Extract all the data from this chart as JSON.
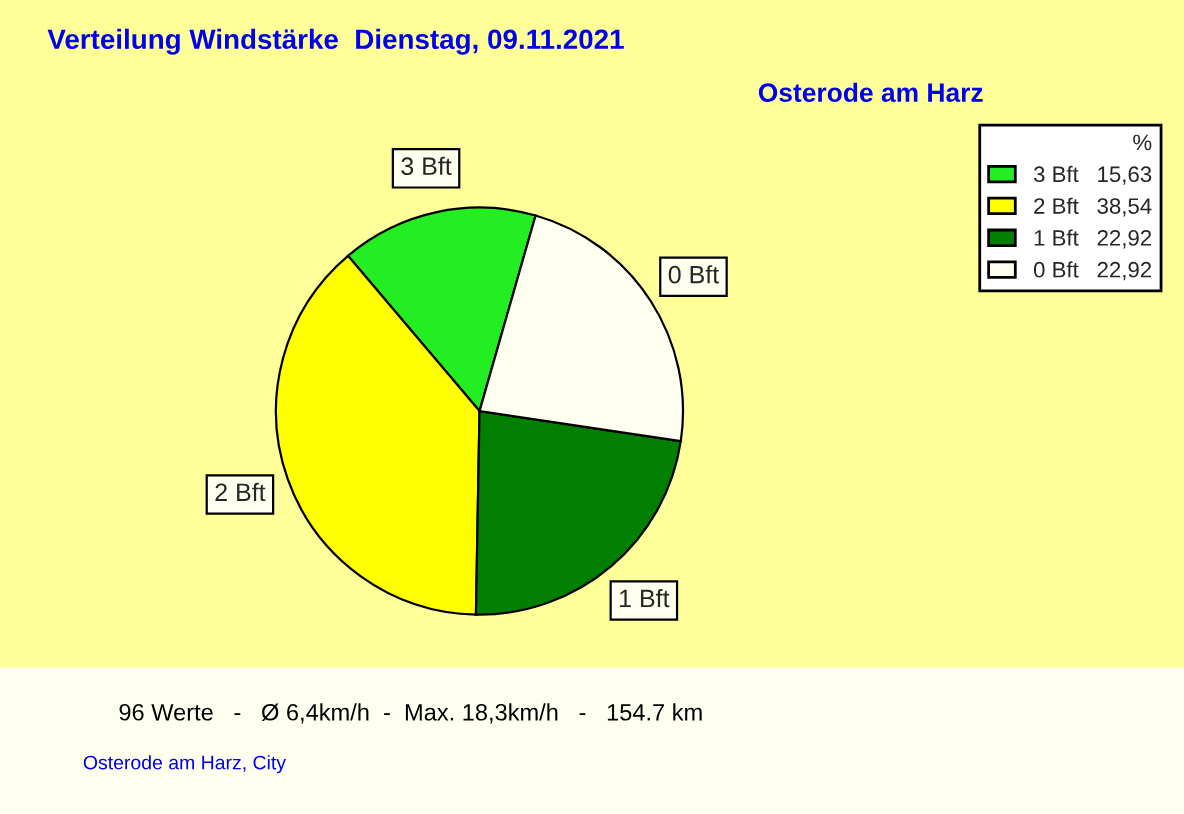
{
  "chart_data": {
    "type": "pie",
    "title": "Verteilung Windstärke  Dienstag, 09.11.2021",
    "subtitle": "Osterode am Harz",
    "categories": [
      "3 Bft",
      "2 Bft",
      "1 Bft",
      "0 Bft"
    ],
    "values": [
      15.63,
      38.54,
      22.92,
      22.92
    ],
    "value_labels": [
      "15,63",
      "38,54",
      "22,92",
      "22,92"
    ],
    "colors": [
      "#22ee22",
      "#ffff00",
      "#007f00",
      "#fffff0"
    ],
    "legend": "top right",
    "legend_title": "%",
    "annotations": [
      "96 Werte   -   Ø 6,4km/h  -  Max. 18,3km/h   -   154.7 km",
      "Osterode am Harz, City"
    ]
  }
}
